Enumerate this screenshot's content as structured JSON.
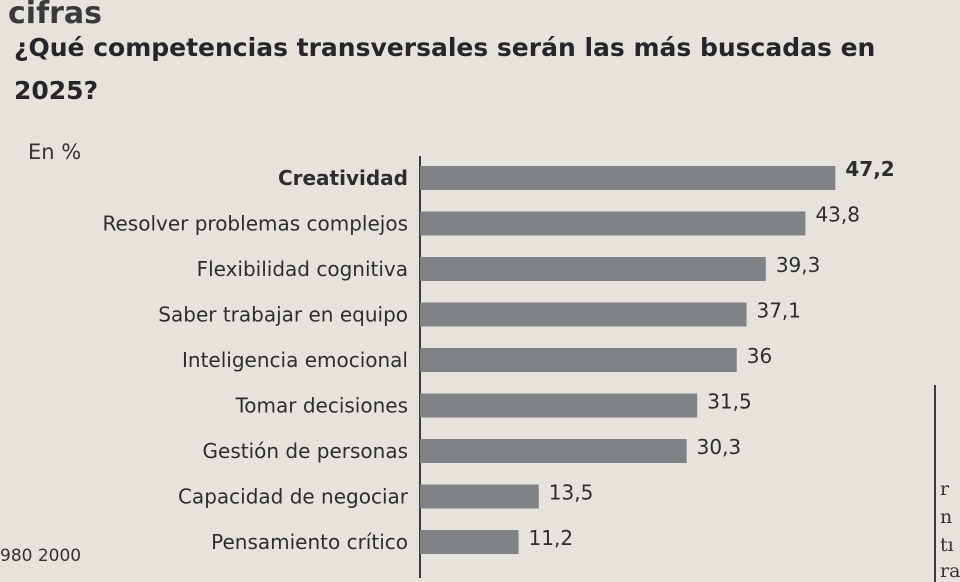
{
  "page": {
    "section_label": "cifras",
    "axis_note": "980  2000",
    "side_fragments": [
      "r",
      "n",
      "tı",
      "ra"
    ]
  },
  "chart_data": {
    "type": "bar",
    "orientation": "horizontal",
    "title": "¿Qué competencias transversales serán las más buscadas en 2025?",
    "units": "En %",
    "xlabel": "",
    "ylabel": "",
    "xlim": [
      0,
      50
    ],
    "grid": false,
    "legend": "none",
    "bar_color": "#808386",
    "highlight_index": 0,
    "categories": [
      "Creatividad",
      "Resolver problemas complejos",
      "Flexibilidad cognitiva",
      "Saber trabajar en equipo",
      "Inteligencia emocional",
      "Tomar decisiones",
      "Gestión de personas",
      "Capacidad de negociar",
      "Pensamiento crítico"
    ],
    "values": [
      47.2,
      43.8,
      39.3,
      37.1,
      36,
      31.5,
      30.3,
      13.5,
      11.2
    ],
    "value_labels": [
      "47,2",
      "43,8",
      "39,3",
      "37,1",
      "36",
      "31,5",
      "30,3",
      "13,5",
      "11,2"
    ]
  }
}
